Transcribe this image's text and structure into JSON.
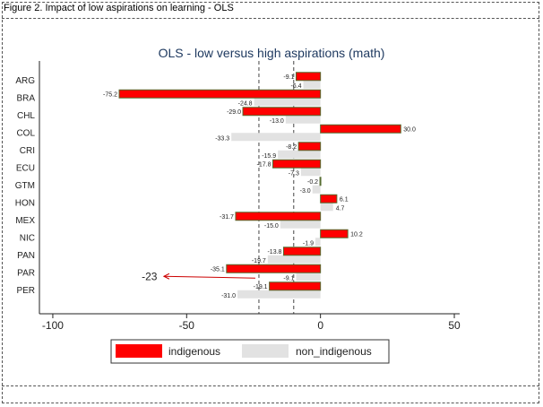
{
  "figure_caption": "Figure 2. Impact of low aspirations on learning - OLS",
  "chart_data": {
    "type": "bar",
    "orientation": "horizontal",
    "title": "OLS - low versus high aspirations (math)",
    "categories": [
      "ARG",
      "BRA",
      "CHL",
      "COL",
      "CRI",
      "ECU",
      "GTM",
      "HON",
      "MEX",
      "NIC",
      "PAN",
      "PAR",
      "PER"
    ],
    "series": [
      {
        "name": "indigenous",
        "color": "#ff0000",
        "edge": "#556b2f",
        "values": [
          -9.1,
          -75.2,
          -29.0,
          30.0,
          -8.2,
          -17.8,
          -0.2,
          6.1,
          -31.7,
          10.2,
          -13.8,
          -35.1,
          -19.1
        ]
      },
      {
        "name": "non_indigenous",
        "color": "#e2e2e2",
        "values": [
          -6.4,
          -24.8,
          -13.0,
          -33.3,
          -15.9,
          -7.3,
          -3.0,
          4.7,
          -15.0,
          -1.9,
          -19.7,
          -9.1,
          -31.0
        ]
      }
    ],
    "labels": {
      "indigenous": [
        "-9.1",
        "-75.2",
        "-29.0",
        "30.0",
        "-8.2",
        "-17.8",
        "-0.2",
        "6.1",
        "-31.7",
        "10.2",
        "-13.8",
        "-35.1",
        "-19.1"
      ],
      "non_indigenous": [
        "-6.4",
        "-24.8",
        "-13.0",
        "-33.3",
        "-15.9",
        "-7.3",
        "-3.0",
        "4.7",
        "-15.0",
        "-1.9",
        "-19.7",
        "-9.1",
        "-31.0"
      ]
    },
    "xlim": [
      -105,
      52
    ],
    "xticks": [
      -100,
      -50,
      0,
      50
    ],
    "xtick_labels": [
      "-100",
      "-50",
      "0",
      "50"
    ],
    "reference_lines": [
      -23,
      -10
    ],
    "annotation": {
      "text": "-23",
      "category": "PAR",
      "arrow_to": -23
    },
    "annotation_color": "#cc0000",
    "legend_position": "bottom",
    "grid": false
  }
}
